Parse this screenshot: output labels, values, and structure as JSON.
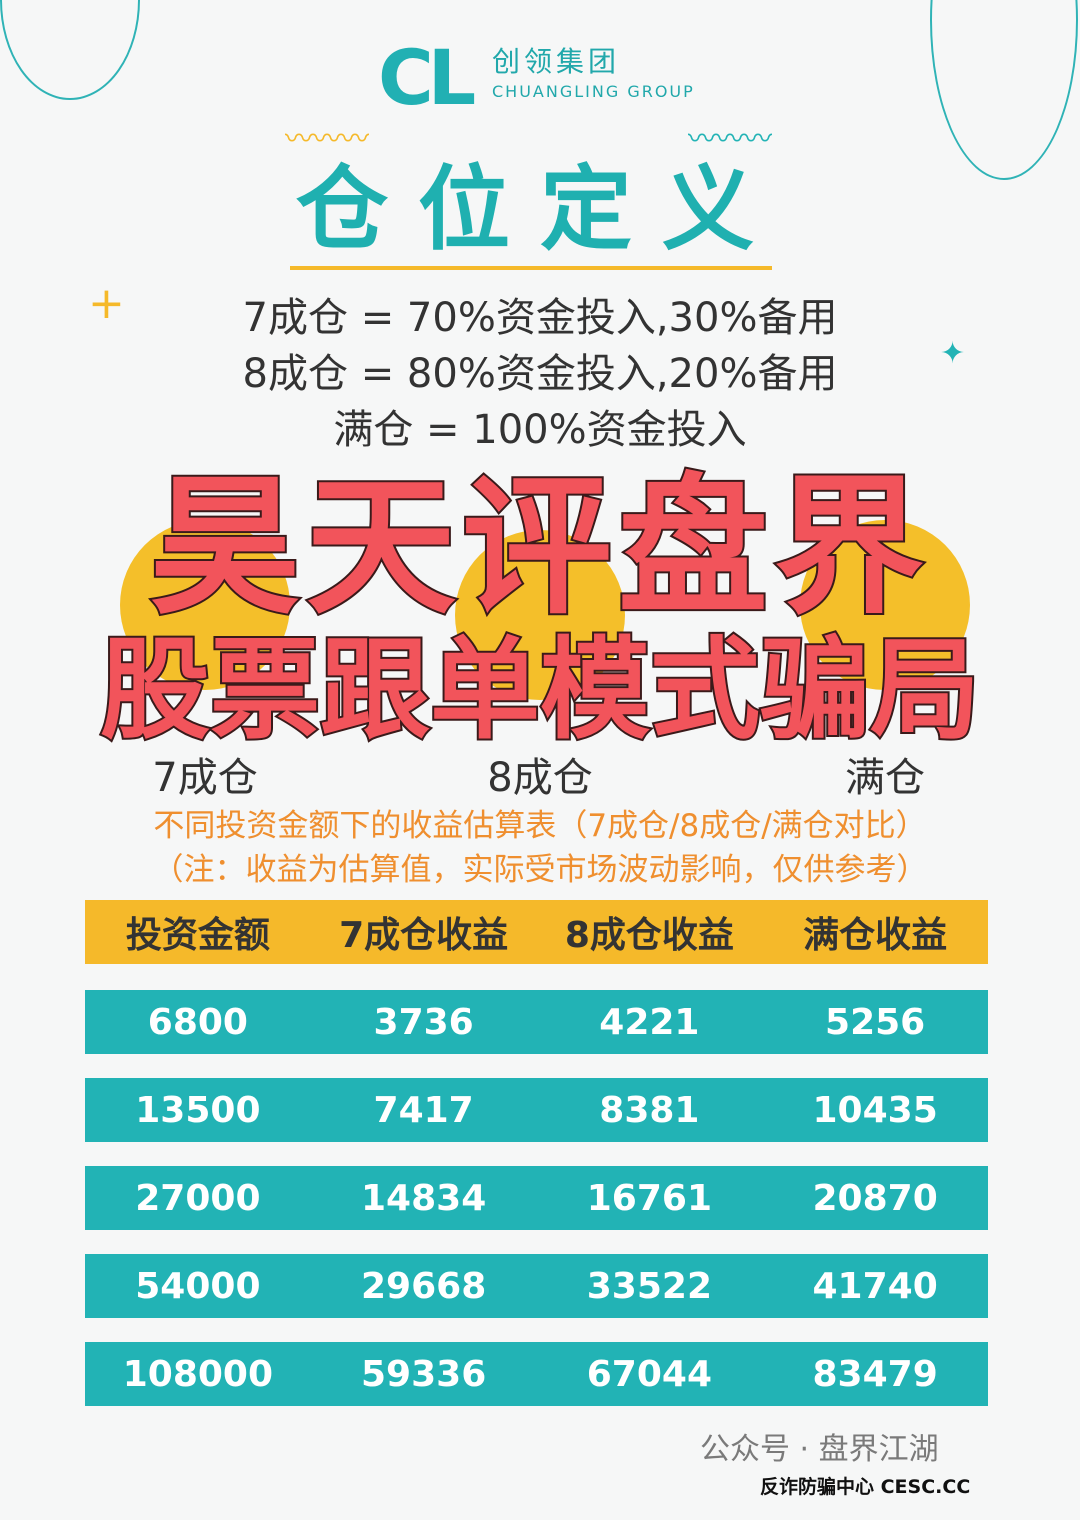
{
  "logo": {
    "mark": "CL",
    "name_cn": "创领集团",
    "name_en": "CHUANGLING GROUP"
  },
  "title": "仓位定义",
  "definitions": [
    "7成仓 = 70%资金投入,30%备用",
    "8成仓 = 80%资金投入,20%备用",
    "满仓 = 100%资金投入"
  ],
  "circle_labels": [
    "7成仓",
    "8成仓",
    "满仓"
  ],
  "overlay": {
    "line1": "昊天评盘界",
    "line2": "股票跟单模式骗局"
  },
  "subtitle": "不同投资金额下的收益估算表（7成仓/8成仓/满仓对比）",
  "note": "（注：收益为估算值，实际受市场波动影响，仅供参考）",
  "table": {
    "headers": [
      "投资金额",
      "7成仓收益",
      "8成仓收益",
      "满仓收益"
    ],
    "rows": [
      [
        "6800",
        "3736",
        "4221",
        "5256"
      ],
      [
        "13500",
        "7417",
        "8381",
        "10435"
      ],
      [
        "27000",
        "14834",
        "16761",
        "20870"
      ],
      [
        "54000",
        "29668",
        "33522",
        "41740"
      ],
      [
        "108000",
        "59336",
        "67044",
        "83479"
      ]
    ]
  },
  "watermark": "公众号 · 盘界江湖",
  "badge": "反诈防骗中心 CESC.CC",
  "colors": {
    "teal": "#22b3b5",
    "yellow": "#f5b92a",
    "overlay_red": "#f2545b",
    "orange_text": "#ef8f2f"
  }
}
